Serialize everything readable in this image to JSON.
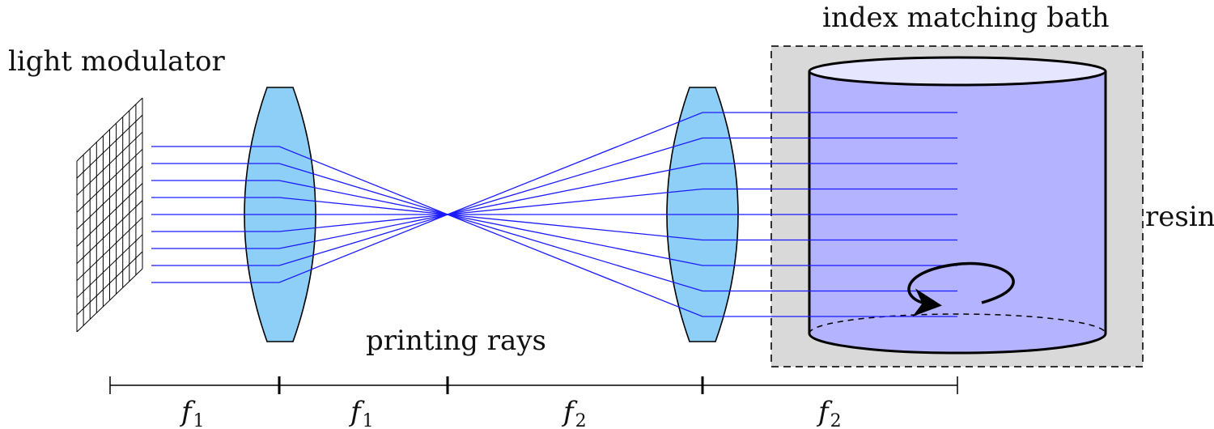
{
  "labels": {
    "light_modulator": "light modulator",
    "index_matching_bath": "index matching bath",
    "resin": "resin",
    "printing_rays": "printing rays"
  },
  "dimension_labels": [
    {
      "symbol": "f",
      "subscript": "1"
    },
    {
      "symbol": "f",
      "subscript": "1"
    },
    {
      "symbol": "f",
      "subscript": "2"
    },
    {
      "symbol": "f",
      "subscript": "2"
    }
  ],
  "colors": {
    "ray": "#1a1aff",
    "lens_fill": "#8ecff8",
    "resin_fill": "#b3b3ff",
    "resin_top": "#e6e6ff",
    "bath_fill": "#d9d9d9",
    "outline": "#000000"
  },
  "icons": {
    "rotation": "rotation-arrow-icon"
  }
}
